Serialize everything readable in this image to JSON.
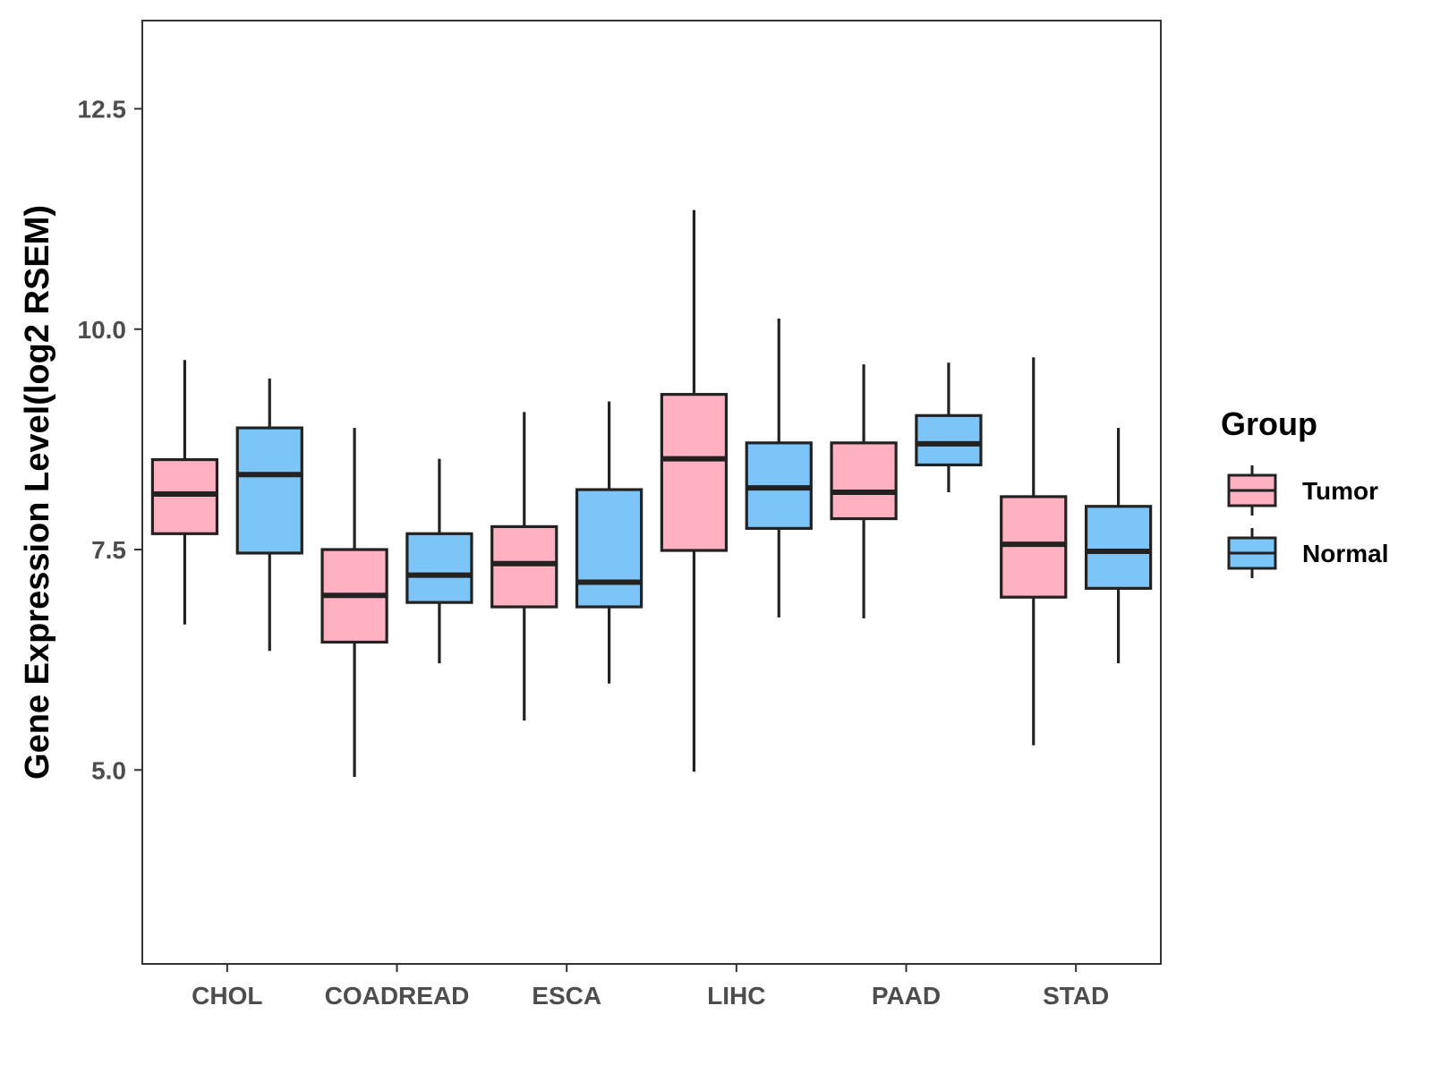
{
  "chart_data": {
    "type": "boxplot",
    "title": "",
    "xlabel": "",
    "ylabel": "Gene Expression Level(log2 RSEM)",
    "ylim": [
      2.8,
      13.5
    ],
    "yticks": [
      5.0,
      7.5,
      10.0,
      12.5
    ],
    "ytick_labels": [
      "5.0",
      "7.5",
      "10.0",
      "12.5"
    ],
    "grid": false,
    "legend": {
      "title": "Group",
      "position": "right"
    },
    "categories": [
      "CHOL",
      "COADREAD",
      "ESCA",
      "LIHC",
      "PAAD",
      "STAD"
    ],
    "series": [
      {
        "name": "Tumor",
        "color": "#FFB1C1",
        "boxes": [
          {
            "whisker_low": 6.65,
            "q1": 7.68,
            "median": 8.13,
            "q3": 8.52,
            "whisker_high": 9.65
          },
          {
            "whisker_low": 4.92,
            "q1": 6.45,
            "median": 6.98,
            "q3": 7.5,
            "whisker_high": 8.88
          },
          {
            "whisker_low": 5.56,
            "q1": 6.85,
            "median": 7.34,
            "q3": 7.76,
            "whisker_high": 9.06
          },
          {
            "whisker_low": 4.98,
            "q1": 7.49,
            "median": 8.53,
            "q3": 9.26,
            "whisker_high": 11.35
          },
          {
            "whisker_low": 6.72,
            "q1": 7.85,
            "median": 8.15,
            "q3": 8.71,
            "whisker_high": 9.6
          },
          {
            "whisker_low": 5.28,
            "q1": 6.96,
            "median": 7.56,
            "q3": 8.1,
            "whisker_high": 9.68
          }
        ]
      },
      {
        "name": "Normal",
        "color": "#7DC4F8",
        "boxes": [
          {
            "whisker_low": 6.35,
            "q1": 7.46,
            "median": 8.35,
            "q3": 8.88,
            "whisker_high": 9.44
          },
          {
            "whisker_low": 6.21,
            "q1": 6.9,
            "median": 7.21,
            "q3": 7.68,
            "whisker_high": 8.53
          },
          {
            "whisker_low": 5.98,
            "q1": 6.85,
            "median": 7.13,
            "q3": 8.18,
            "whisker_high": 9.18
          },
          {
            "whisker_low": 6.73,
            "q1": 7.74,
            "median": 8.2,
            "q3": 8.71,
            "whisker_high": 10.12
          },
          {
            "whisker_low": 8.15,
            "q1": 8.46,
            "median": 8.7,
            "q3": 9.02,
            "whisker_high": 9.62
          },
          {
            "whisker_low": 6.21,
            "q1": 7.06,
            "median": 7.48,
            "q3": 7.99,
            "whisker_high": 8.88
          }
        ]
      }
    ]
  }
}
